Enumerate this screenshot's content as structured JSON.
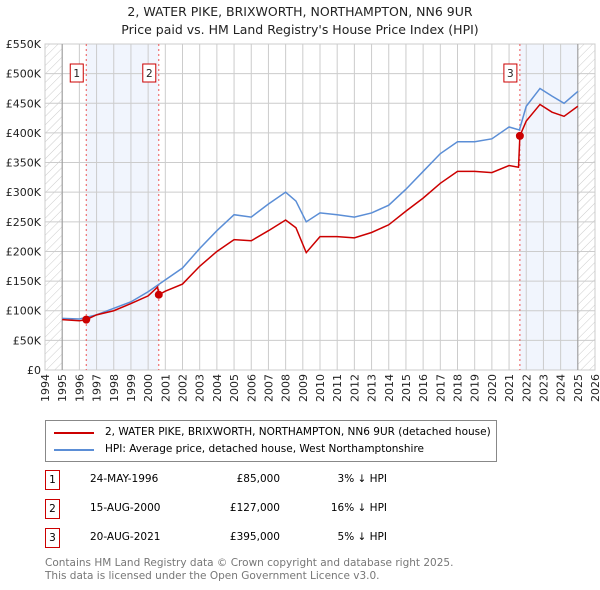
{
  "chart_data": {
    "type": "line",
    "title": "2, WATER PIKE, BRIXWORTH, NORTHAMPTON, NN6 9UR",
    "subtitle": "Price paid vs. HM Land Registry's House Price Index (HPI)",
    "xlim": [
      1994,
      2026
    ],
    "ylim": [
      0,
      550000
    ],
    "x_ticks": [
      "1994",
      "1995",
      "1996",
      "1997",
      "1998",
      "1999",
      "2000",
      "2001",
      "2002",
      "2003",
      "2004",
      "2005",
      "2006",
      "2007",
      "2008",
      "2009",
      "2010",
      "2011",
      "2012",
      "2013",
      "2014",
      "2015",
      "2016",
      "2017",
      "2018",
      "2019",
      "2020",
      "2021",
      "2022",
      "2023",
      "2024",
      "2025",
      "2026"
    ],
    "y_ticks": [
      "£0",
      "£50K",
      "£100K",
      "£150K",
      "£200K",
      "£250K",
      "£300K",
      "£350K",
      "£400K",
      "£450K",
      "£500K",
      "£550K"
    ],
    "grid": true,
    "series": [
      {
        "name": "2, WATER PIKE, BRIXWORTH, NORTHAMPTON, NN6 9UR (detached house)",
        "color": "#cc0000",
        "x": [
          1995,
          1996,
          1996.4,
          1997,
          1998,
          1999,
          2000,
          2000.55,
          2000.62,
          2001,
          2002,
          2003,
          2004,
          2005,
          2006,
          2007,
          2008,
          2008.6,
          2009.2,
          2010,
          2011,
          2012,
          2013,
          2014,
          2015,
          2016,
          2017,
          2018,
          2019,
          2020,
          2021,
          2021.55,
          2021.63,
          2022,
          2022.8,
          2023.5,
          2024.2,
          2025
        ],
        "y": [
          85000,
          83000,
          85000,
          93000,
          100000,
          112000,
          125000,
          140000,
          127000,
          133000,
          145000,
          175000,
          200000,
          220000,
          218000,
          235000,
          253000,
          240000,
          198000,
          225000,
          225000,
          223000,
          232000,
          245000,
          268000,
          290000,
          315000,
          335000,
          335000,
          333000,
          345000,
          342000,
          395000,
          420000,
          448000,
          435000,
          428000,
          445000
        ]
      },
      {
        "name": "HPI: Average price, detached house, West Northamptonshire",
        "color": "#5b8ed6",
        "x": [
          1995,
          1996,
          1997,
          1998,
          1999,
          2000,
          2001,
          2002,
          2003,
          2004,
          2005,
          2006,
          2007,
          2008,
          2008.6,
          2009.2,
          2010,
          2011,
          2012,
          2013,
          2014,
          2015,
          2016,
          2017,
          2018,
          2019,
          2020,
          2021,
          2021.6,
          2022,
          2022.8,
          2023.5,
          2024.2,
          2025
        ],
        "y": [
          87000,
          86000,
          93000,
          104000,
          115000,
          132000,
          152000,
          172000,
          205000,
          235000,
          262000,
          258000,
          280000,
          300000,
          285000,
          250000,
          265000,
          262000,
          258000,
          265000,
          278000,
          305000,
          335000,
          365000,
          385000,
          385000,
          390000,
          410000,
          405000,
          445000,
          475000,
          462000,
          450000,
          470000
        ]
      }
    ],
    "sales": [
      {
        "label": "1",
        "x": 1996.4,
        "price": 85000,
        "date": "24-MAY-1996",
        "price_text": "£85,000",
        "hpi": "3% ↓ HPI"
      },
      {
        "label": "2",
        "x": 2000.62,
        "price": 127000,
        "date": "15-AUG-2000",
        "price_text": "£127,000",
        "hpi": "16% ↓ HPI"
      },
      {
        "label": "3",
        "x": 2021.63,
        "price": 395000,
        "date": "20-AUG-2021",
        "price_text": "£395,000",
        "hpi": "5% ↓ HPI"
      }
    ],
    "shaded": [
      [
        1996.4,
        2000.62
      ],
      [
        2021.63,
        2025
      ]
    ],
    "hatched": [
      [
        1994,
        1995
      ],
      [
        2025,
        2026
      ]
    ]
  },
  "footer": {
    "line1": "Contains HM Land Registry data © Crown copyright and database right 2025.",
    "line2": "This data is licensed under the Open Government Licence v3.0."
  }
}
